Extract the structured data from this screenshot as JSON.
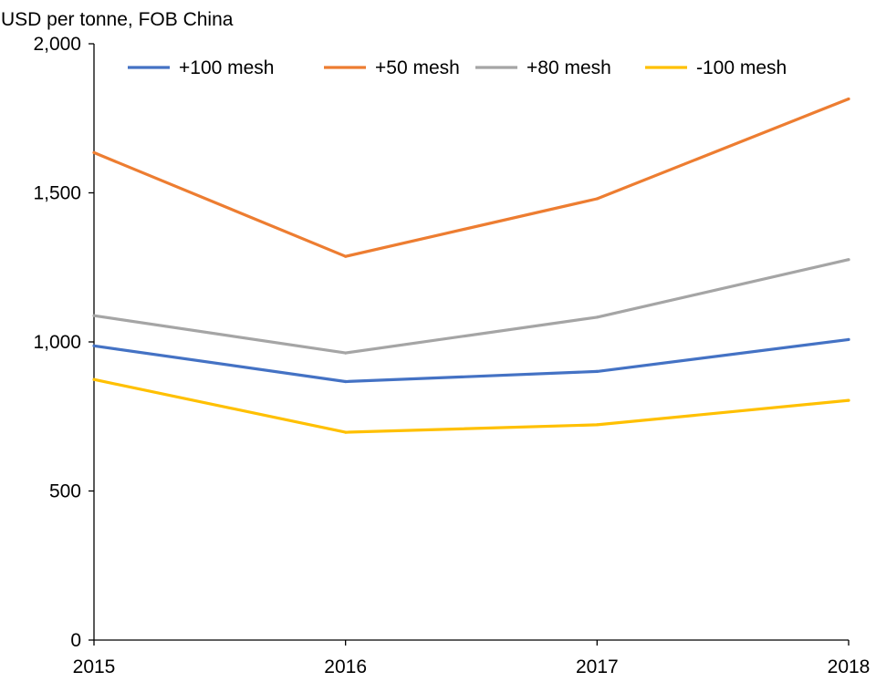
{
  "chart_data": {
    "type": "line",
    "title": "",
    "ylabel": "USD per tonne, FOB China",
    "xlabel": "",
    "categories": [
      "2015",
      "2016",
      "2017",
      "2018"
    ],
    "ylim": [
      0,
      2000
    ],
    "yticks": [
      0,
      500,
      1000,
      1500,
      2000
    ],
    "ytick_labels": [
      "0",
      "500",
      "1,000",
      "1,500",
      "2,000"
    ],
    "grid": false,
    "legend_position": "top",
    "series": [
      {
        "name": "+100 mesh",
        "color": "#4472C4",
        "values": [
          987,
          867,
          901,
          1008
        ]
      },
      {
        "name": "+50 mesh",
        "color": "#ED7D31",
        "values": [
          1635,
          1287,
          1480,
          1815
        ]
      },
      {
        "name": "+80 mesh",
        "color": "#A5A5A5",
        "values": [
          1088,
          963,
          1083,
          1276
        ]
      },
      {
        "name": "-100 mesh",
        "color": "#FFC000",
        "values": [
          874,
          697,
          722,
          804
        ]
      }
    ]
  }
}
